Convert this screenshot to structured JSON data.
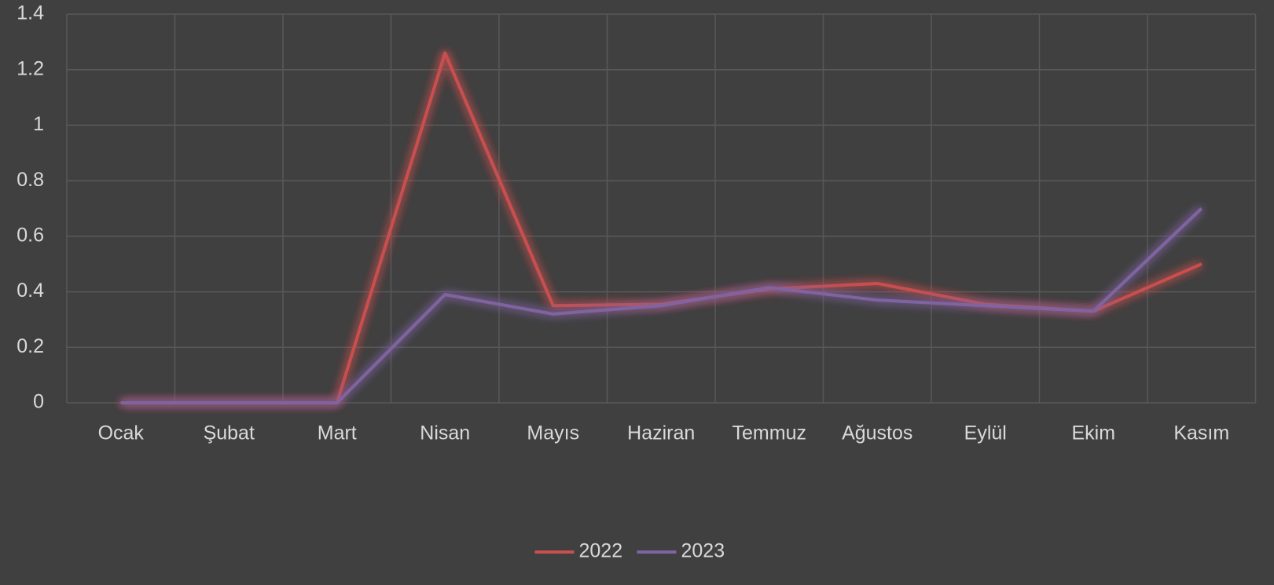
{
  "chart_data": {
    "type": "line",
    "categories": [
      "Ocak",
      "Şubat",
      "Mart",
      "Nisan",
      "Mayıs",
      "Haziran",
      "Temmuz",
      "Ağustos",
      "Eylül",
      "Ekim",
      "Kasım"
    ],
    "series": [
      {
        "name": "2022",
        "color": "#c9504f",
        "values": [
          0,
          0,
          0,
          1.26,
          0.35,
          0.355,
          0.41,
          0.43,
          0.355,
          0.33,
          0.5
        ]
      },
      {
        "name": "2023",
        "color": "#8064a2",
        "values": [
          0,
          0,
          0,
          0.39,
          0.32,
          0.35,
          0.415,
          0.37,
          0.35,
          0.33,
          0.7
        ]
      }
    ],
    "ylim": [
      0,
      1.4
    ],
    "yticks": [
      0,
      0.2,
      0.4,
      0.6,
      0.8,
      1,
      1.2,
      1.4
    ],
    "grid": true,
    "legend": "bottom"
  }
}
